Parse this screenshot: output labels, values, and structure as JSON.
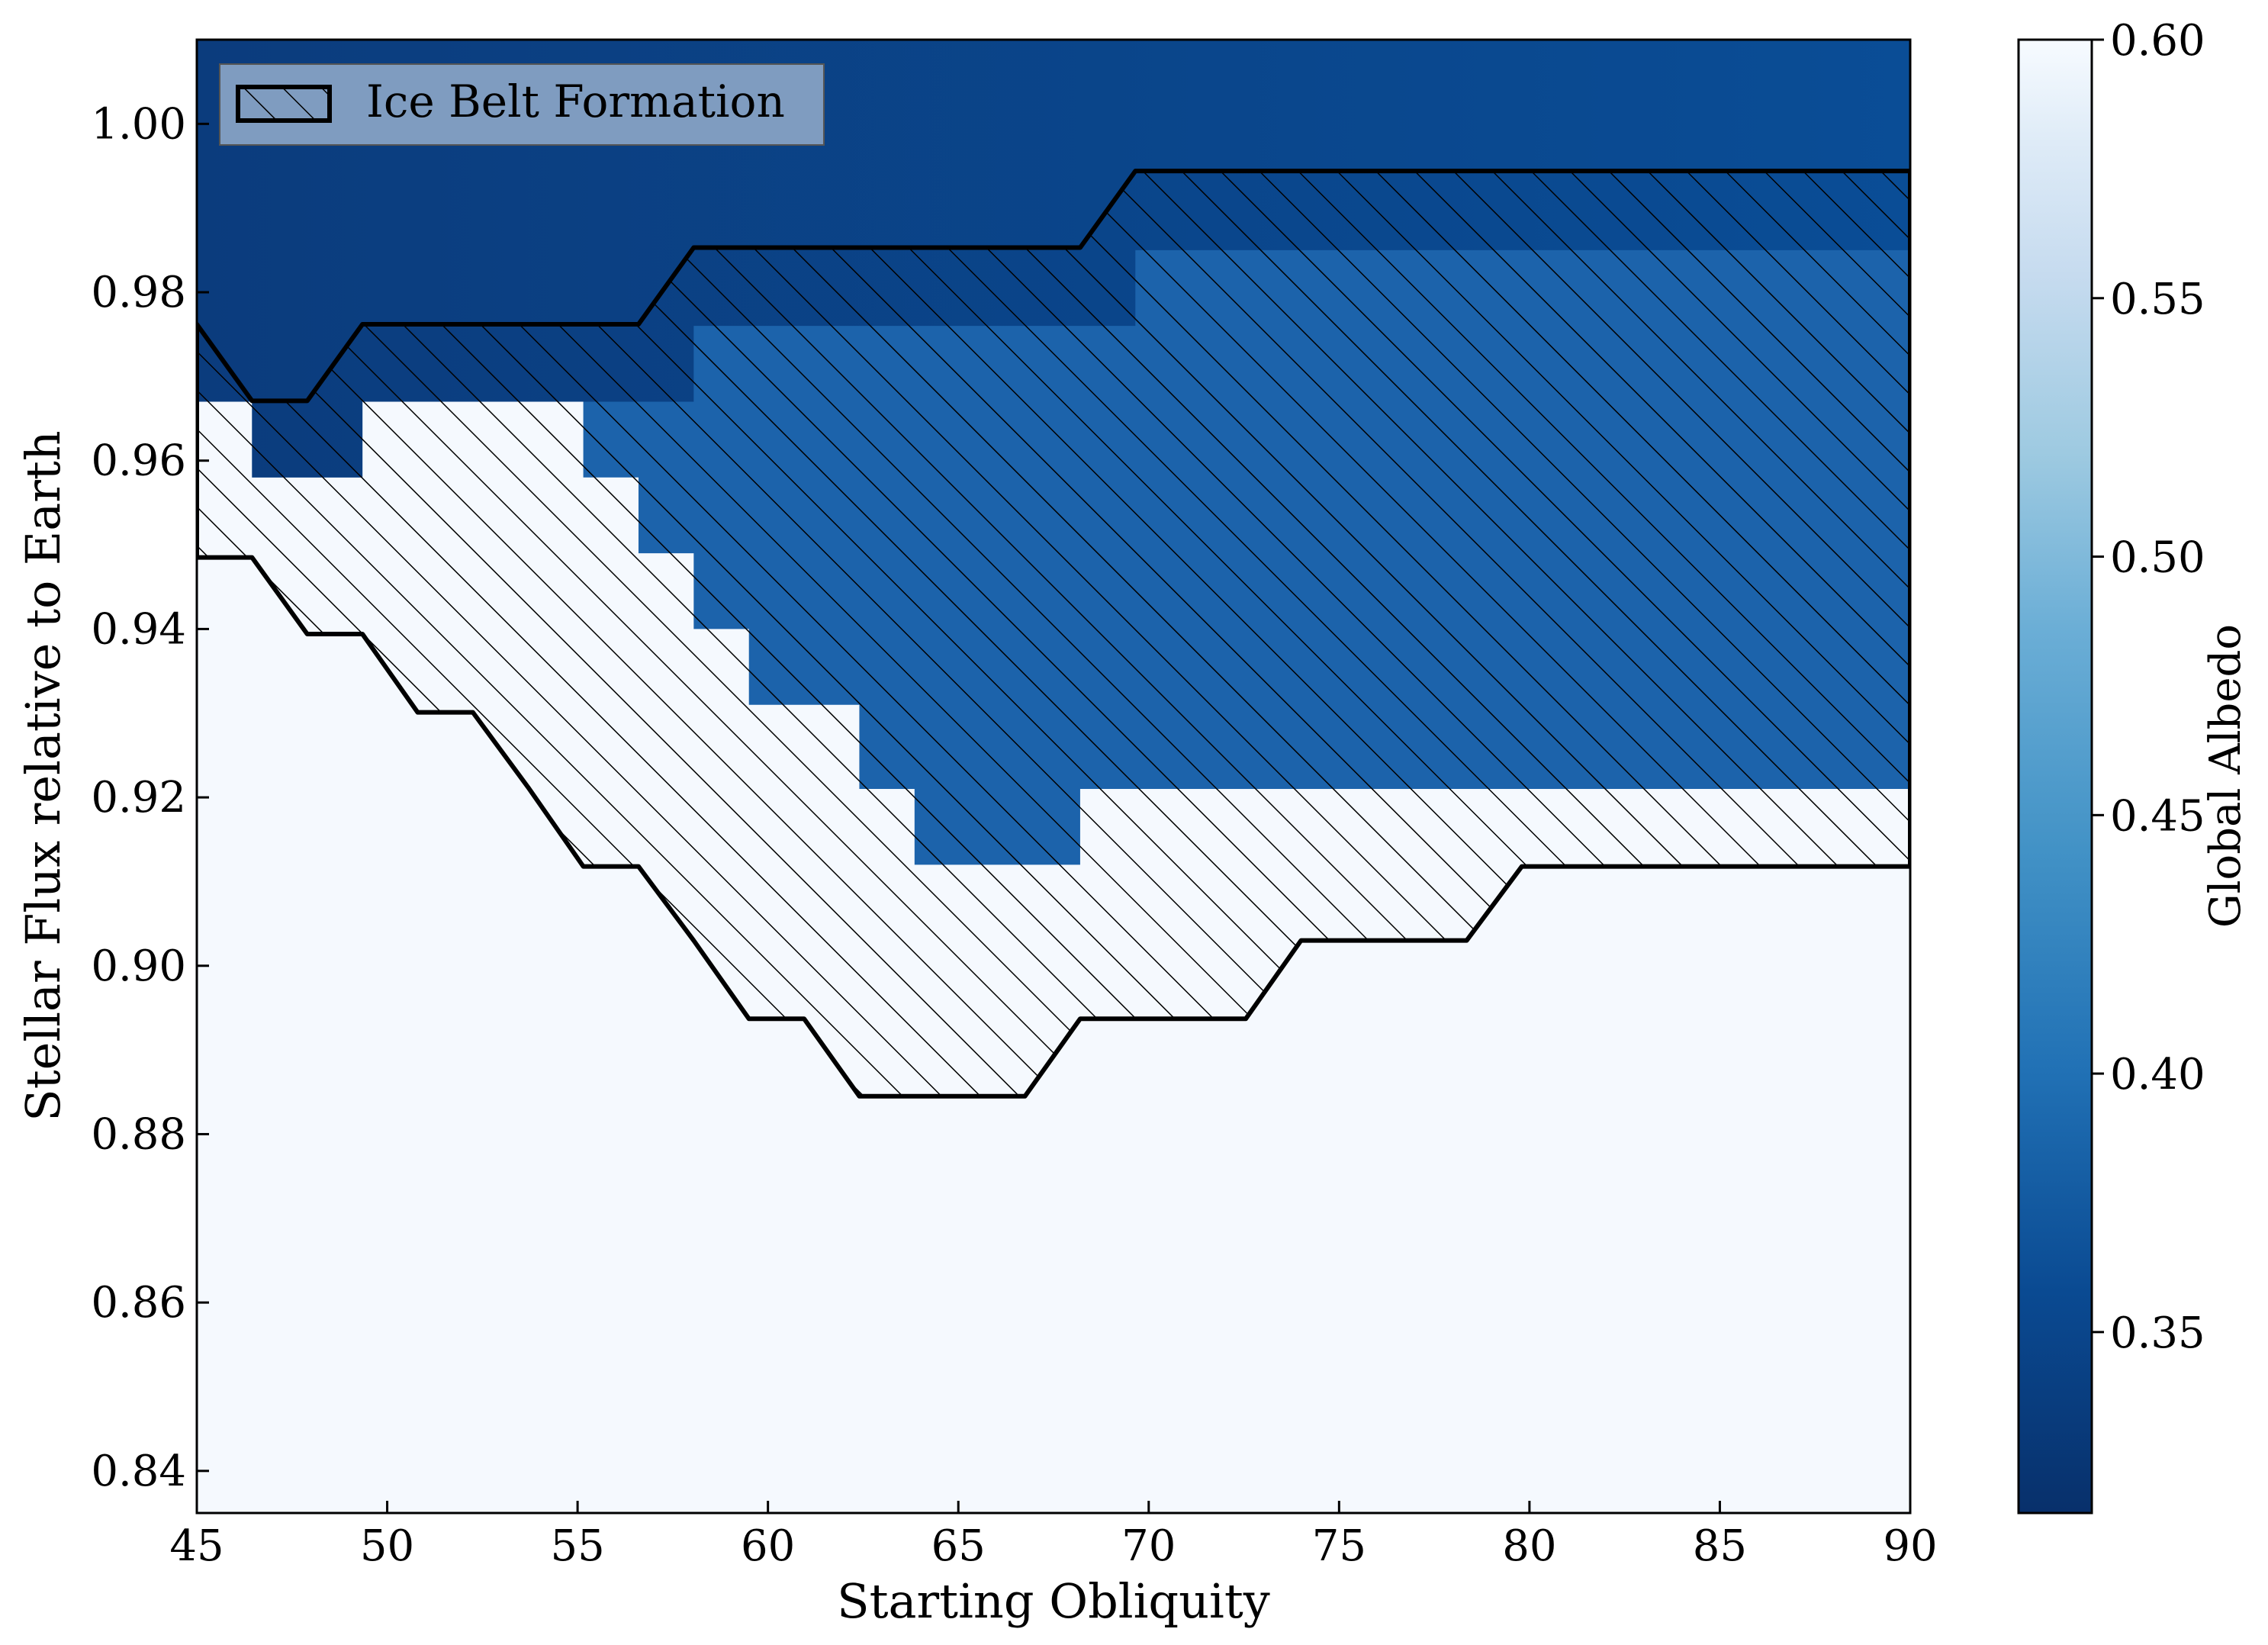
{
  "chart_data": {
    "type": "heatmap",
    "xlabel": "Starting Obliquity",
    "ylabel": "Stellar Flux relative to Earth",
    "xlim": [
      45,
      90
    ],
    "ylim": [
      0.835,
      1.01
    ],
    "xticks": [
      "45",
      "50",
      "55",
      "60",
      "65",
      "70",
      "75",
      "80",
      "85",
      "90"
    ],
    "yticks": [
      "0.84",
      "0.86",
      "0.88",
      "0.90",
      "0.92",
      "0.94",
      "0.96",
      "0.98",
      "1.00"
    ],
    "colorbar": {
      "label": "Global Albedo",
      "range": [
        0.315,
        0.6
      ],
      "colormap": "Blues",
      "ticks": [
        "0.35",
        "0.40",
        "0.45",
        "0.50",
        "0.55",
        "0.60"
      ]
    },
    "legend": {
      "label": "Ice Belt Formation",
      "placement": "top-left"
    },
    "x_bins": [
      45,
      46.45,
      47.9,
      49.35,
      50.8,
      52.25,
      53.7,
      55.15,
      56.6,
      58.05,
      59.5,
      60.95,
      62.4,
      63.85,
      65.3,
      66.75,
      68.2,
      69.65,
      71.1,
      72.55,
      74.0,
      75.45,
      76.9,
      78.35,
      79.8,
      81.25,
      82.7,
      84.15,
      85.6,
      87.05,
      88.5,
      90
    ],
    "regions": [
      {
        "name": "cold-dark",
        "albedo": 0.33,
        "bottom_boundary": [
          0.967,
          0.958,
          0.958,
          0.967,
          0.967,
          0.967,
          0.967,
          0.967,
          0.967,
          0.976,
          0.976,
          0.976,
          0.976,
          0.976,
          0.976,
          0.976,
          0.976,
          0.985,
          0.985,
          0.985,
          0.985,
          0.985,
          0.985,
          0.985,
          0.985,
          0.985,
          0.985,
          0.985,
          0.985,
          0.985,
          0.985
        ]
      },
      {
        "name": "ice-belt-blue",
        "albedo": 0.37,
        "bottom_boundary": [
          0.967,
          0.958,
          0.958,
          0.967,
          0.967,
          0.967,
          0.967,
          0.958,
          0.949,
          0.94,
          0.931,
          0.931,
          0.921,
          0.912,
          0.912,
          0.912,
          0.921,
          0.921,
          0.921,
          0.921,
          0.921,
          0.921,
          0.921,
          0.921,
          0.921,
          0.921,
          0.921,
          0.921,
          0.921,
          0.921,
          0.921
        ]
      },
      {
        "name": "snowball-white",
        "albedo": 0.595
      }
    ],
    "ice_belt_region": {
      "upper": [
        0.9762,
        0.9671,
        0.9671,
        0.9762,
        0.9762,
        0.9762,
        0.9762,
        0.9762,
        0.9762,
        0.9853,
        0.9853,
        0.9853,
        0.9853,
        0.9853,
        0.9853,
        0.9853,
        0.9853,
        0.9944,
        0.9944,
        0.9944,
        0.9944,
        0.9944,
        0.9944,
        0.9944,
        0.9944,
        0.9944,
        0.9944,
        0.9944,
        0.9944,
        0.9944,
        0.9944,
        0.9944
      ],
      "lower": [
        0.9485,
        0.9485,
        0.9394,
        0.9394,
        0.9301,
        0.9301,
        0.9212,
        0.9118,
        0.9118,
        0.903,
        0.8937,
        0.8937,
        0.8845,
        0.8845,
        0.8845,
        0.8845,
        0.8937,
        0.8937,
        0.8937,
        0.8937,
        0.903,
        0.903,
        0.903,
        0.903,
        0.9118,
        0.9118,
        0.9118,
        0.9118,
        0.9118,
        0.9118,
        0.9118,
        0.9118
      ]
    },
    "colors": {
      "cold_dark": "#0b3c7d",
      "cold_dark_right": "#0a4d96",
      "ice_belt_blue": "#1c63ab",
      "snowball_white": "#f5f9fe",
      "legend_fill": "#7f9cc0"
    }
  }
}
